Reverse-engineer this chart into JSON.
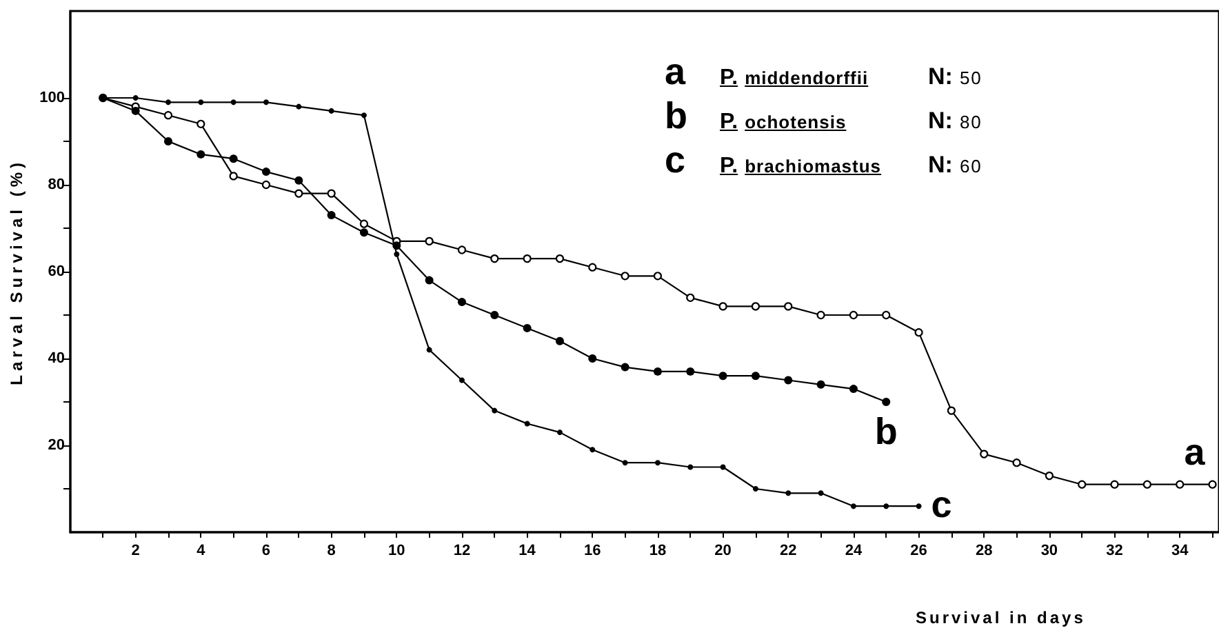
{
  "chart_data": {
    "type": "line",
    "xlabel": "Survival in days",
    "ylabel": "Larval Survival (%)",
    "x": [
      1,
      2,
      3,
      4,
      5,
      6,
      7,
      8,
      9,
      10,
      11,
      12,
      13,
      14,
      15,
      16,
      17,
      18,
      19,
      20,
      21,
      22,
      23,
      24,
      25,
      26,
      27,
      28,
      29,
      30,
      31,
      32,
      33,
      34,
      35
    ],
    "series": [
      {
        "name": "a",
        "color": "#000000",
        "values": [
          100,
          98,
          96,
          94,
          82,
          80,
          78,
          78,
          71,
          67,
          67,
          65,
          63,
          63,
          63,
          61,
          59,
          59,
          54,
          52,
          52,
          52,
          50,
          50,
          50,
          46,
          28,
          18,
          16,
          13,
          11,
          11,
          11,
          11,
          11
        ]
      },
      {
        "name": "b",
        "color": "#000000",
        "values": [
          100,
          97,
          90,
          87,
          86,
          83,
          81,
          73,
          69,
          66,
          58,
          53,
          50,
          47,
          44,
          40,
          38,
          37,
          37,
          36,
          36,
          35,
          34,
          33,
          30,
          null,
          null,
          null,
          null,
          null,
          null,
          null,
          null,
          null,
          null
        ]
      },
      {
        "name": "c",
        "color": "#000000",
        "values": [
          100,
          100,
          99,
          99,
          99,
          99,
          98,
          97,
          96,
          64,
          42,
          35,
          28,
          25,
          23,
          19,
          16,
          16,
          15,
          15,
          10,
          9,
          9,
          6,
          6,
          6,
          null,
          null,
          null,
          null,
          null,
          null,
          null,
          null,
          null
        ]
      }
    ],
    "annotations": [
      "P. middendorffii",
      "N: 50",
      "P. ochotensis",
      "N: 80",
      "P. brachiomastus",
      "N: 60"
    ],
    "xlim": [
      0,
      35.2
    ],
    "xticks": [
      {
        "value": 1,
        "label": null
      },
      2,
      {
        "value": 3,
        "label": null
      },
      4,
      {
        "value": 5,
        "label": null
      },
      6,
      {
        "value": 7,
        "label": null
      },
      8,
      {
        "value": 9,
        "label": null
      },
      10,
      {
        "value": 11,
        "label": null
      },
      12,
      {
        "value": 13,
        "label": null
      },
      14,
      {
        "value": 15,
        "label": null
      },
      16,
      {
        "value": 17,
        "label": null
      },
      18,
      {
        "value": 19,
        "label": null
      },
      20,
      {
        "value": 21,
        "label": null
      },
      22,
      {
        "value": 23,
        "label": null
      },
      24,
      {
        "value": 25,
        "label": null
      },
      26,
      {
        "value": 27,
        "label": null
      },
      28,
      {
        "value": 29,
        "label": null
      },
      30,
      {
        "value": 31,
        "label": null
      },
      32,
      {
        "value": 33,
        "label": null
      },
      34,
      {
        "value": 35,
        "label": null
      }
    ],
    "ylim": [
      0,
      120
    ],
    "yticks": [
      {
        "value": 10,
        "label": null
      },
      20,
      {
        "value": 30,
        "label": null
      },
      40,
      {
        "value": 50,
        "label": null
      },
      60,
      {
        "value": 70,
        "label": null
      },
      80,
      {
        "value": 90,
        "label": null
      },
      100
    ],
    "grid": false,
    "marker": "circle",
    "line_style": "solid"
  }
}
